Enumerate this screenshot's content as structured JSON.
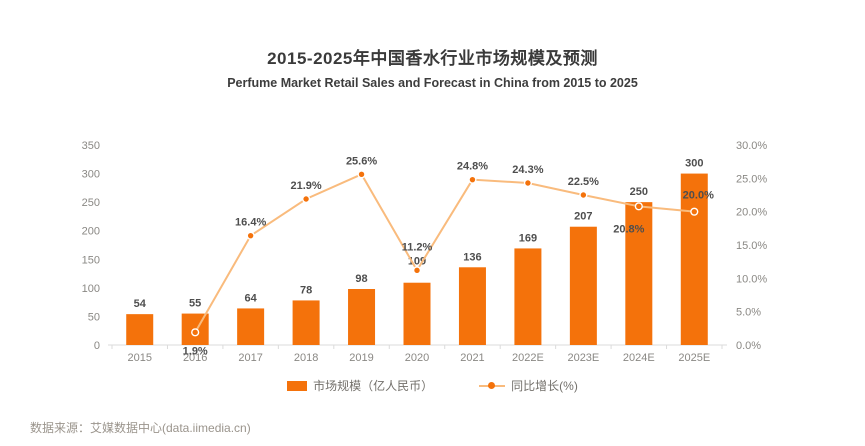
{
  "header": {
    "title": "2015-2025年中国香水行业市场规模及预测",
    "subtitle": "Perfume Market Retail Sales and Forecast in China from 2015 to 2025"
  },
  "chart_data": {
    "type": "bar",
    "subtype": "bar+line combo, dual axis",
    "title": "2015-2025年中国香水行业市场规模及预测",
    "subtitle": "Perfume Market Retail Sales and Forecast in China from 2015 to 2025",
    "categories": [
      "2015",
      "2016",
      "2017",
      "2018",
      "2019",
      "2020",
      "2021",
      "2022E",
      "2023E",
      "2024E",
      "2025E"
    ],
    "series": [
      {
        "name": "市场规模（亿人民币）",
        "type": "bar",
        "axis": "left",
        "values": [
          54,
          55,
          64,
          78,
          98,
          109,
          136,
          169,
          207,
          250,
          300
        ],
        "value_labels": [
          "54",
          "55",
          "64",
          "78",
          "98",
          "109",
          "136",
          "169",
          "207",
          "250",
          "300"
        ]
      },
      {
        "name": "同比增长(%)",
        "type": "line",
        "axis": "right",
        "values": [
          null,
          1.9,
          16.4,
          21.9,
          25.6,
          11.2,
          24.8,
          24.3,
          22.5,
          20.8,
          20.0
        ],
        "value_labels": [
          "",
          "1.9%",
          "16.4%",
          "21.9%",
          "25.6%",
          "11.2%",
          "24.8%",
          "24.3%",
          "22.5%",
          "20.8%",
          "20.0%"
        ]
      }
    ],
    "left_axis": {
      "min": 0,
      "max": 350,
      "step": 50,
      "ticks": [
        "0",
        "50",
        "100",
        "150",
        "200",
        "250",
        "300",
        "350"
      ]
    },
    "right_axis": {
      "min": 0,
      "max": 30,
      "step": 5,
      "ticks": [
        "0.0%",
        "5.0%",
        "10.0%",
        "15.0%",
        "20.0%",
        "25.0%",
        "30.0%"
      ]
    },
    "grid": false,
    "legend_position": "bottom"
  },
  "legend": {
    "bar_label": "市场规模（亿人民币）",
    "line_label": "同比增长(%)"
  },
  "source": {
    "text": "数据来源：艾媒数据中心(data.iimedia.cn)"
  },
  "colors": {
    "bar": "#f4720b",
    "line": "#f9bb7d",
    "marker": "#f4720b",
    "marker_ring": "#ffffff",
    "data_label": "#4e4e4e",
    "axis_label": "#8a8884",
    "axis_line": "#dbdbdb",
    "title": "#3a3a3a",
    "source_text": "#9a948c"
  }
}
